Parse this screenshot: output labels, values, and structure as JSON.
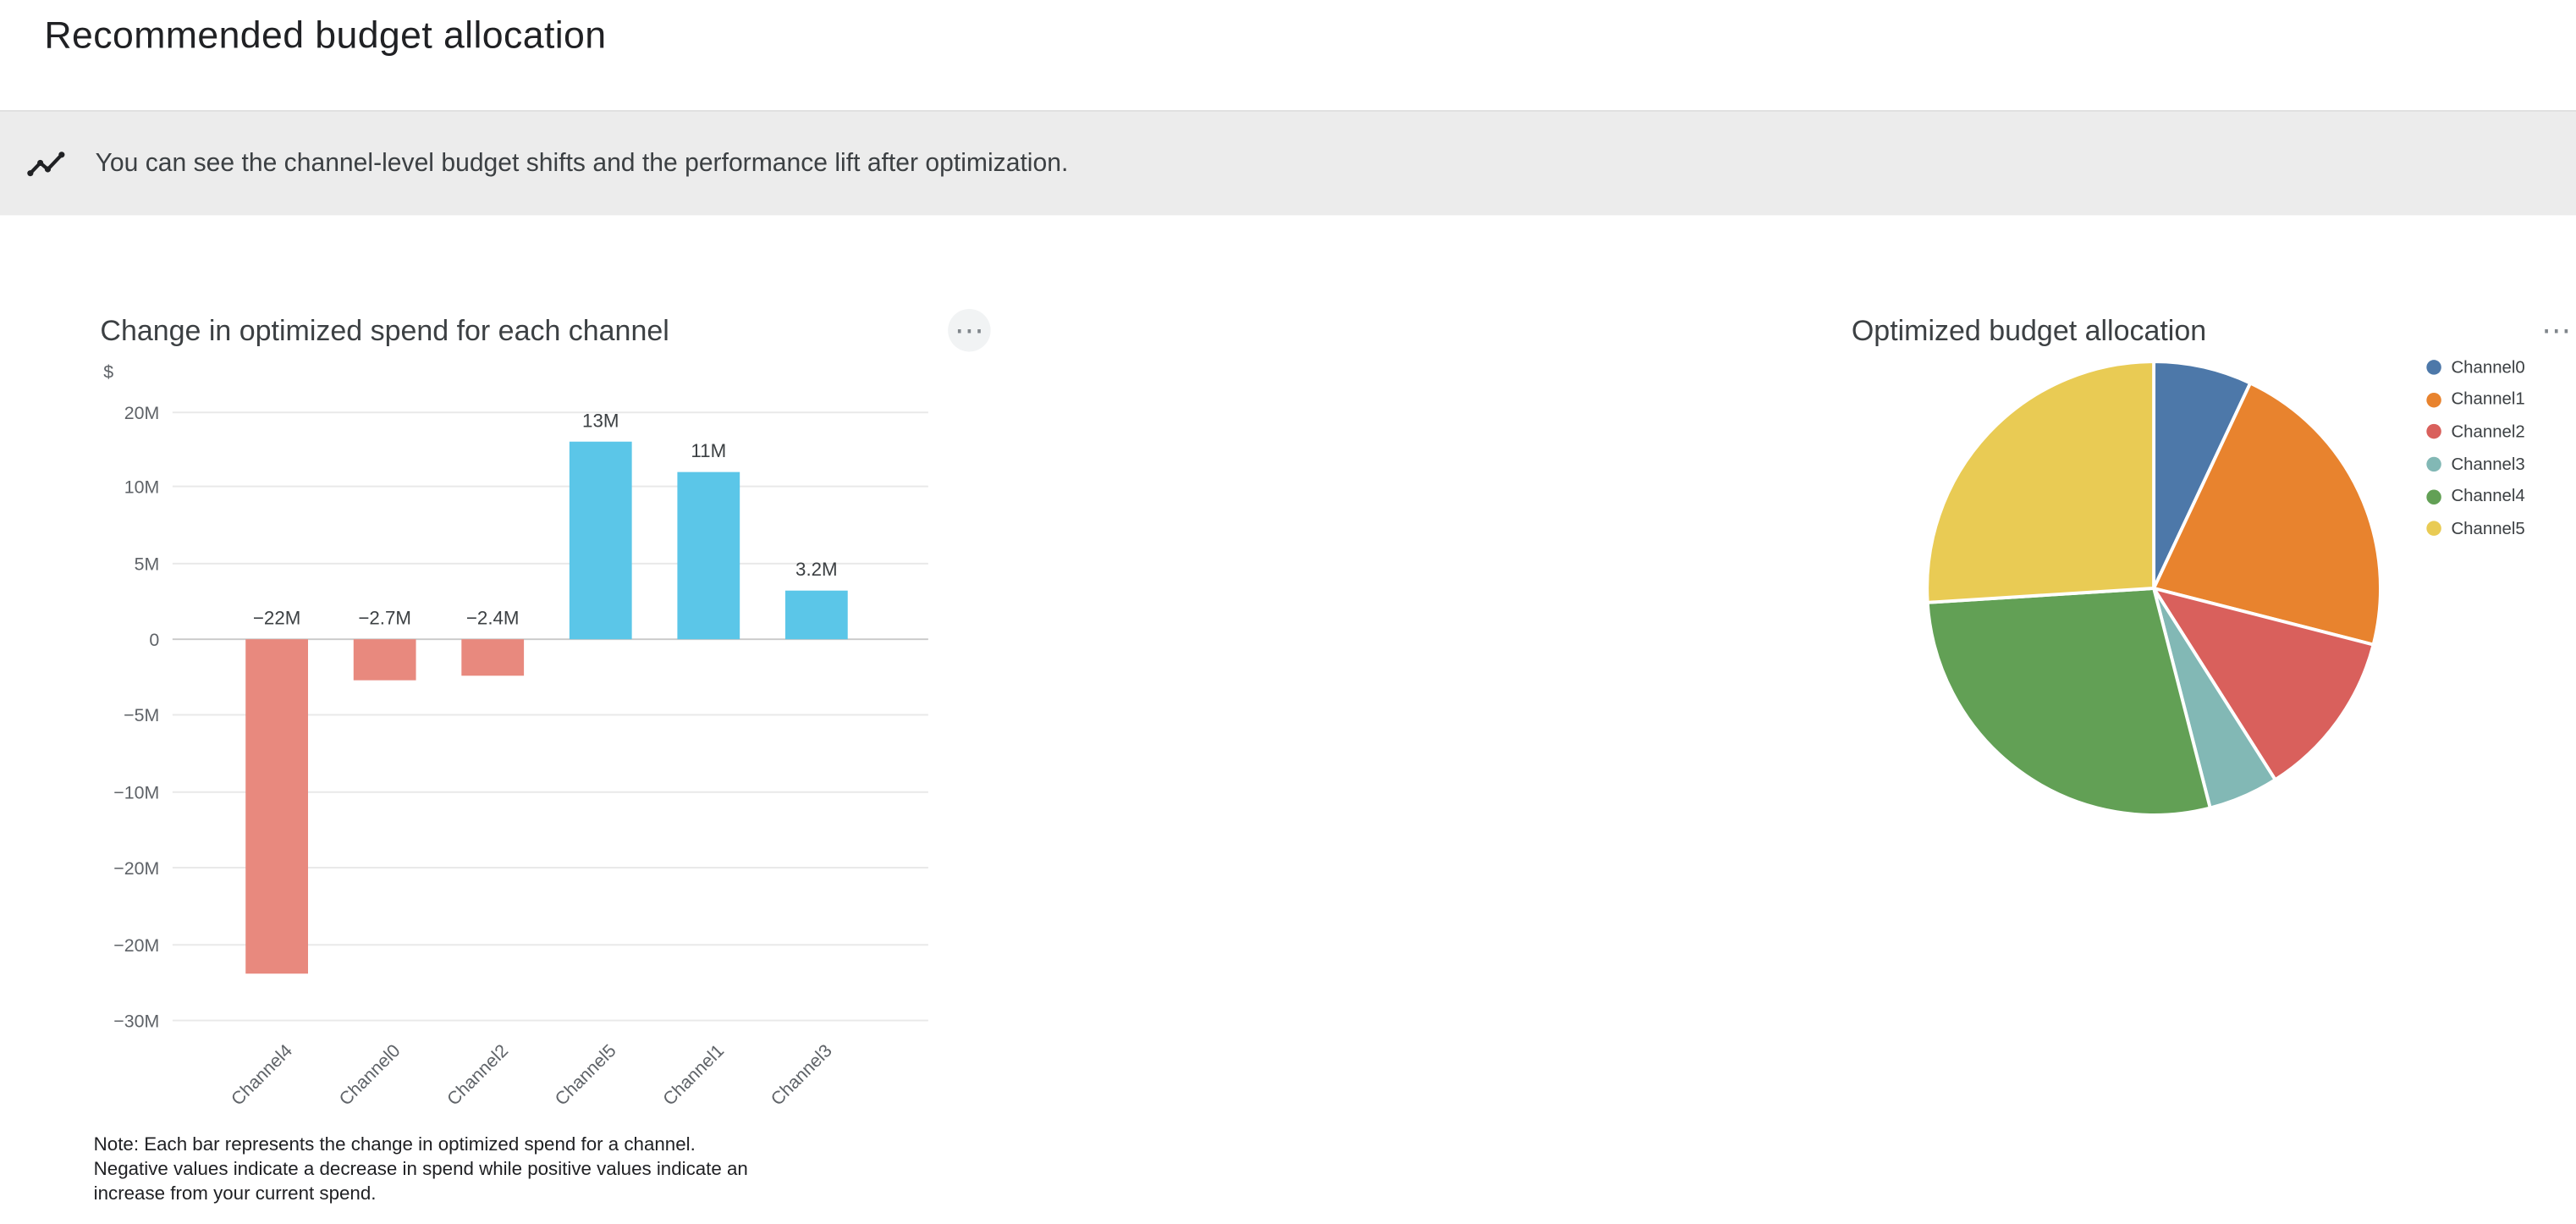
{
  "page": {
    "title": "Recommended budget allocation"
  },
  "banner": {
    "text": "You can see the channel-level budget shifts and the performance lift after optimization."
  },
  "icons": {
    "more_options": "⋯",
    "insights": "zigzag-line-chart-with-dots"
  },
  "chart_data": [
    {
      "type": "bar",
      "title": "Change in optimized spend for each channel",
      "ylabel": "$",
      "categories": [
        "Channel4",
        "Channel0",
        "Channel2",
        "Channel5",
        "Channel1",
        "Channel3"
      ],
      "values": [
        -22,
        -2.7,
        -2.4,
        13,
        11,
        3.2
      ],
      "value_labels": [
        "−22M",
        "−2.7M",
        "−2.4M",
        "13M",
        "11M",
        "3.2M"
      ],
      "y_tick_labels": [
        "20M",
        "10M",
        "5M",
        "0",
        "−5M",
        "−10M",
        "−20M",
        "−20M",
        "−30M"
      ],
      "grid": true,
      "colors": {
        "positive": "#5bc6e8",
        "negative": "#e8897e"
      },
      "note": "Note: Each bar represents the change in optimized spend for a channel. Negative values indicate a decrease in spend while positive values indicate an increase from your current spend."
    },
    {
      "type": "pie",
      "title": "Optimized budget allocation",
      "labels": [
        "Channel0",
        "Channel1",
        "Channel2",
        "Channel3",
        "Channel4",
        "Channel5"
      ],
      "values_pct": [
        7,
        22,
        12,
        5,
        28,
        26
      ],
      "colors": [
        "#4d78a9",
        "#e8832e",
        "#d9605c",
        "#82b8b5",
        "#62a055",
        "#e9cb54"
      ],
      "legend_position": "right"
    }
  ]
}
